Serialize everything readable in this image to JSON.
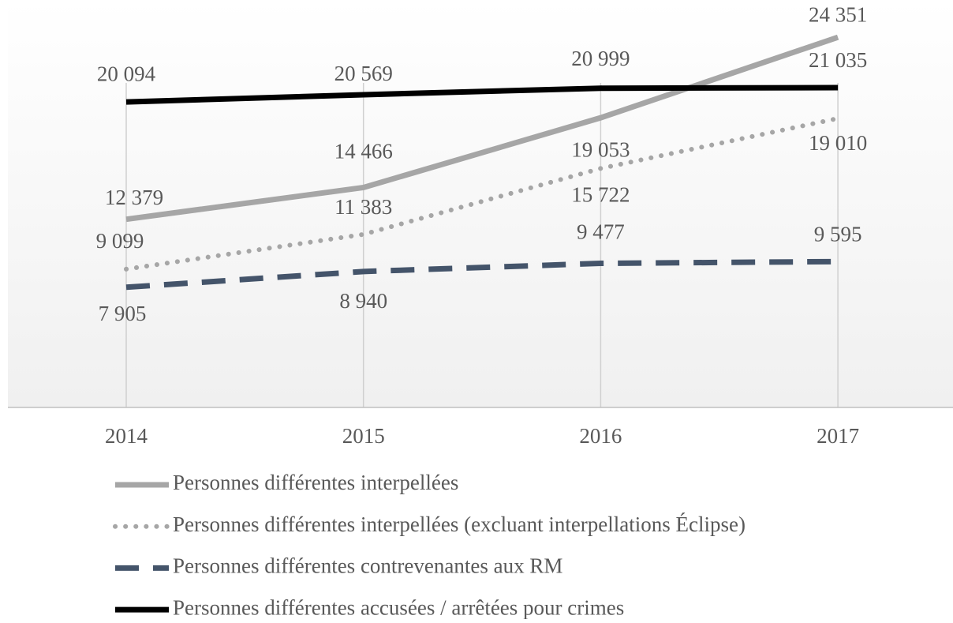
{
  "chart_data": {
    "type": "line",
    "categories": [
      "2014",
      "2015",
      "2016",
      "2017"
    ],
    "ylim": [
      0,
      26800
    ],
    "series": [
      {
        "name": "Personnes différentes interpellées",
        "color": "#a6a6a6",
        "style": "solid",
        "values": [
          12379,
          14466,
          19053,
          24351
        ],
        "value_labels": [
          "12 379",
          "14 466",
          "19 053",
          "24 351"
        ]
      },
      {
        "name": "Personnes différentes interpellées (excluant interpellations Éclipse)",
        "color": "#a6a6a6",
        "style": "dotted",
        "values": [
          9099,
          11383,
          15722,
          19010
        ],
        "value_labels": [
          "9 099",
          "11 383",
          "15 722",
          "19 010"
        ]
      },
      {
        "name": "Personnes différentes contrevenantes aux RM",
        "color": "#44546a",
        "style": "dashed",
        "values": [
          7905,
          8940,
          9477,
          9595
        ],
        "value_labels": [
          "7 905",
          "8 940",
          "9 477",
          "9 595"
        ]
      },
      {
        "name": "Personnes différentes accusées / arrêtées pour crimes",
        "color": "#000000",
        "style": "solid",
        "values": [
          20094,
          20569,
          20999,
          21035
        ],
        "value_labels": [
          "20 094",
          "20 569",
          "20 999",
          "21 035"
        ]
      }
    ]
  }
}
